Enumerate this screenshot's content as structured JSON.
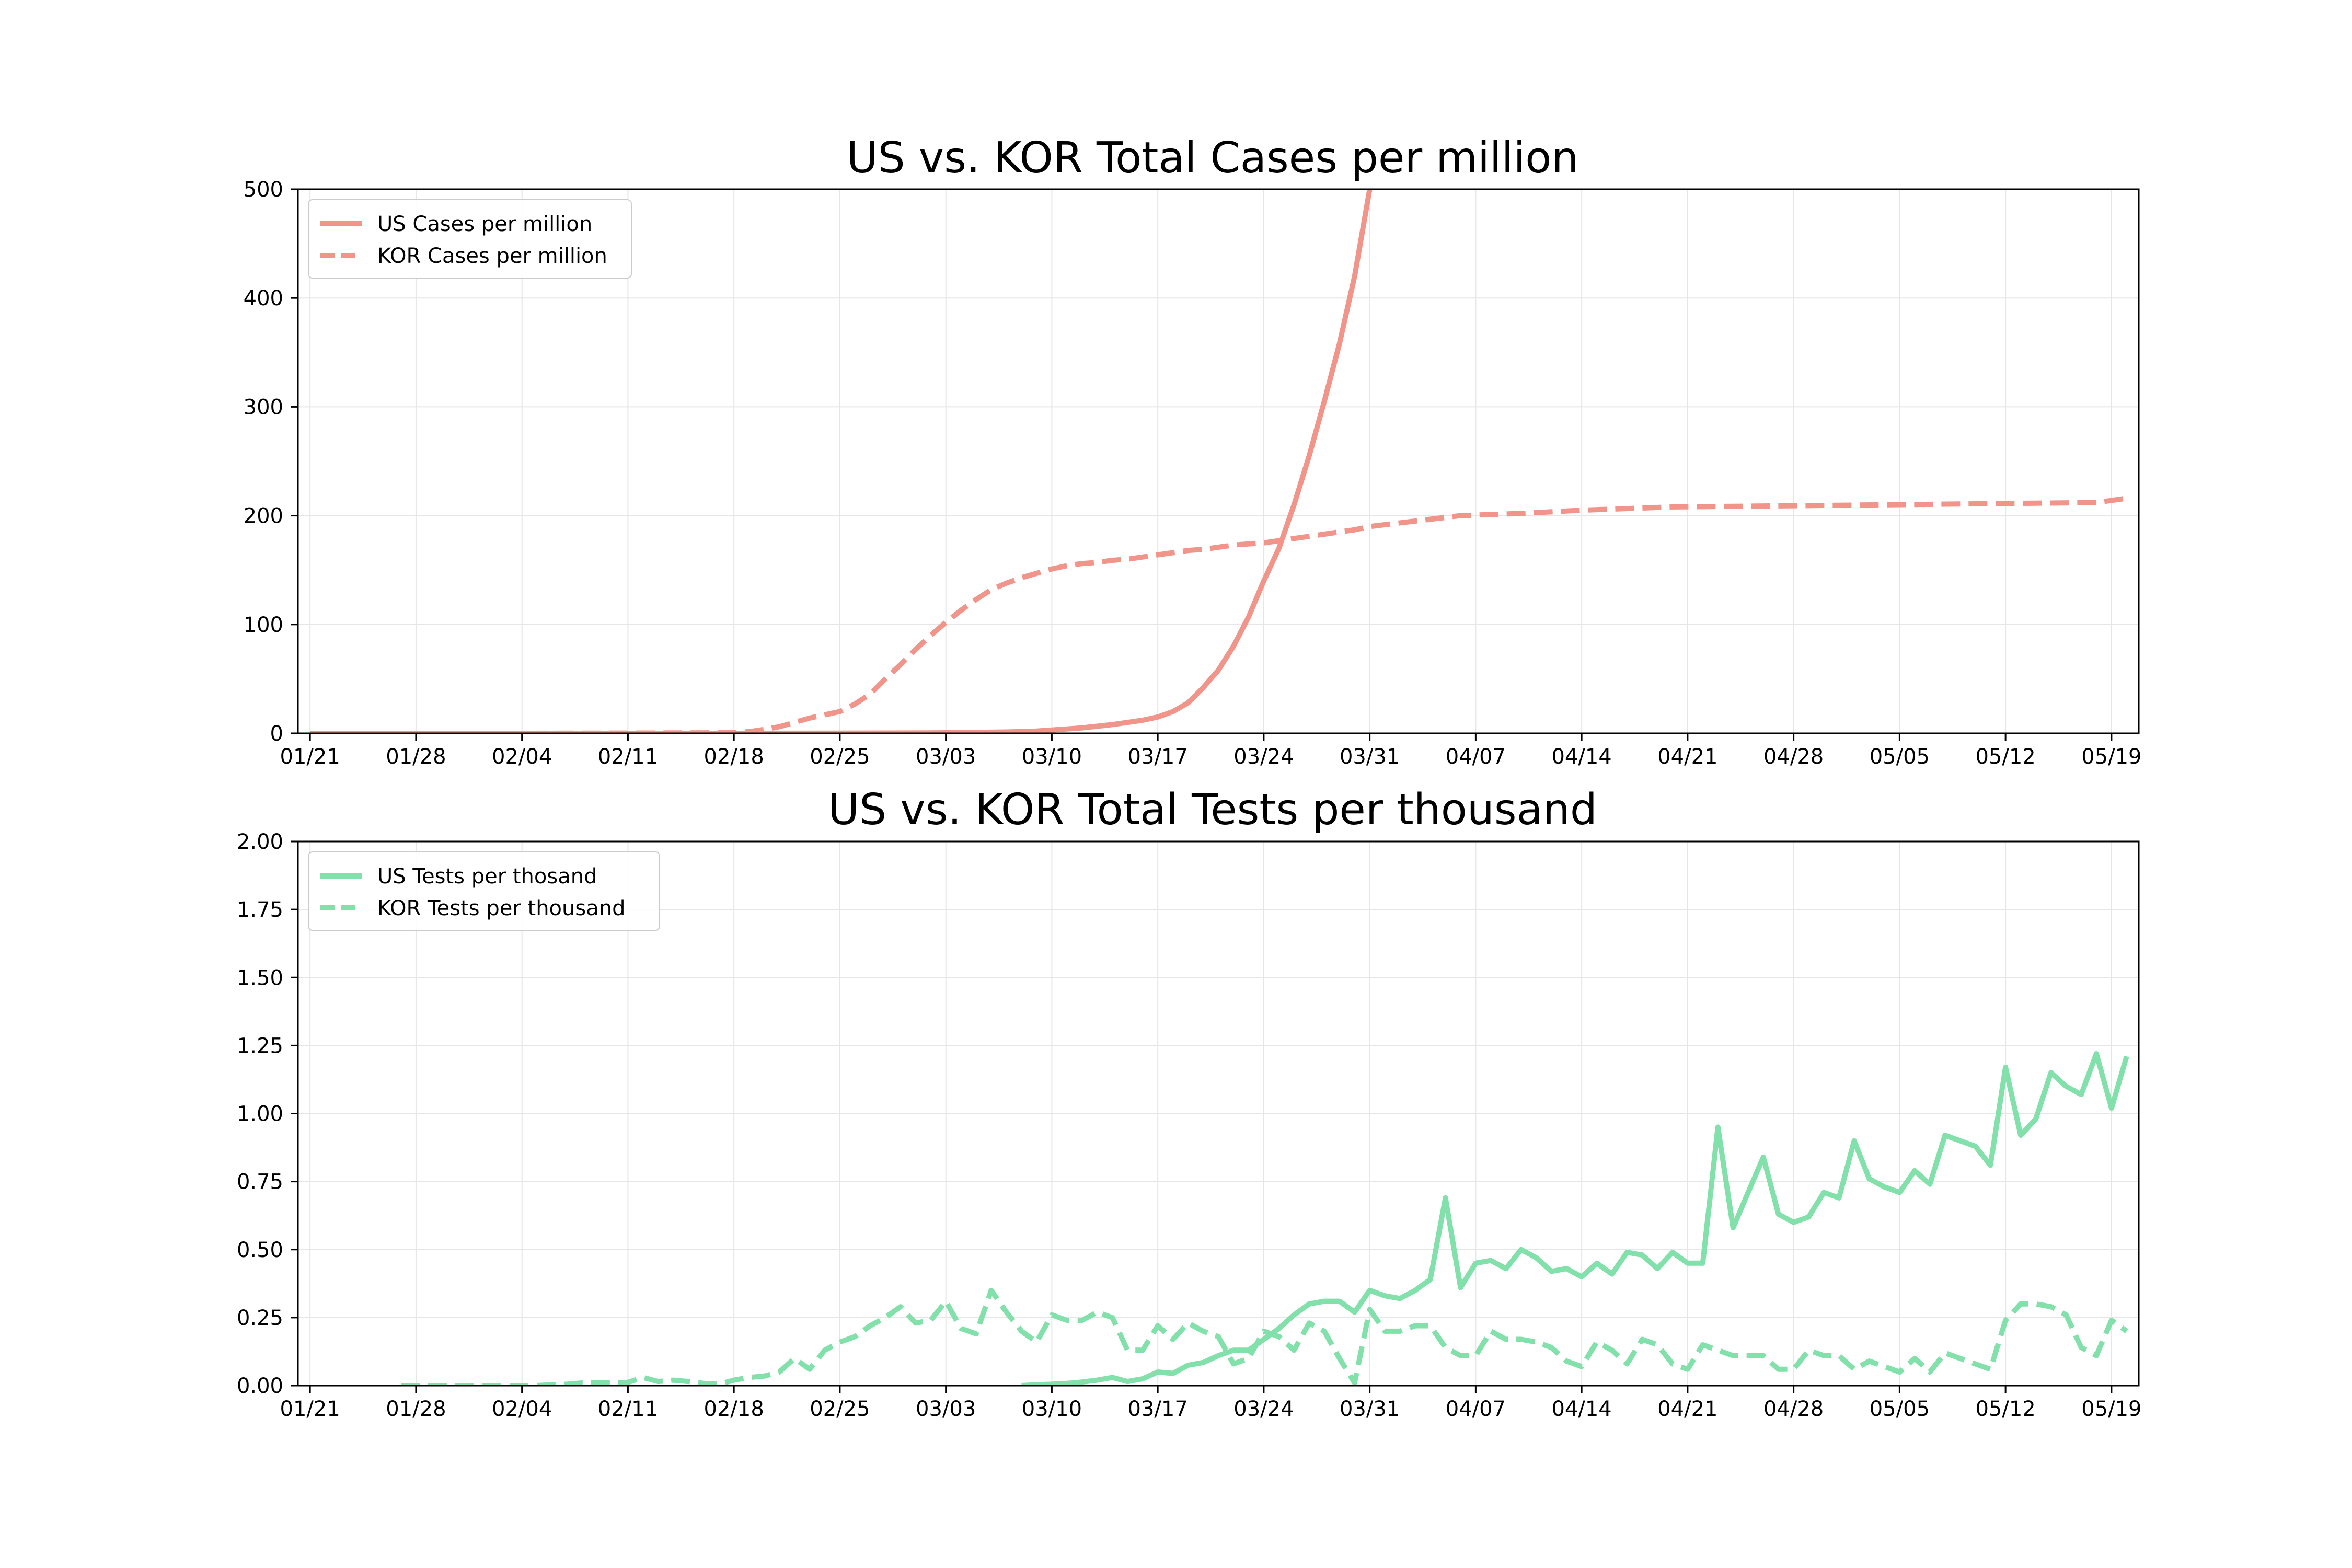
{
  "chart_data": [
    {
      "type": "line",
      "title": "US vs. KOR Total Cases per million",
      "xlabel": "",
      "ylabel": "",
      "x_start": "01/21",
      "xticks": [
        "01/21",
        "01/28",
        "02/04",
        "02/11",
        "02/18",
        "02/25",
        "03/03",
        "03/10",
        "03/17",
        "03/24",
        "03/31",
        "04/07",
        "04/14",
        "04/21",
        "04/28",
        "05/05",
        "05/12",
        "05/19"
      ],
      "xlim": [
        -0.8,
        120.8
      ],
      "ylim": [
        0,
        500
      ],
      "yticks": [
        "0",
        "100",
        "200",
        "300",
        "400",
        "500"
      ],
      "ytick_values": [
        0,
        100,
        200,
        300,
        400,
        500
      ],
      "grid": true,
      "legend": "upper left",
      "color": "#f1948a",
      "series": [
        {
          "name": "US Cases per million",
          "style": "solid",
          "x": [
            0,
            7,
            14,
            21,
            28,
            35,
            40,
            42,
            44,
            46,
            47,
            48,
            49,
            50,
            51,
            52,
            53,
            54,
            55,
            56,
            57,
            58,
            59,
            60,
            61,
            62,
            63,
            64,
            65,
            66,
            67,
            68,
            69,
            70
          ],
          "values": [
            0,
            0,
            0,
            0,
            0,
            0.1,
            0.3,
            0.5,
            0.8,
            1.2,
            1.6,
            2,
            3,
            4,
            5,
            6.5,
            8,
            10,
            12,
            15,
            20,
            28,
            42,
            58,
            80,
            107,
            140,
            170,
            210,
            255,
            305,
            358,
            420,
            500
          ]
        },
        {
          "name": "KOR Cases per million",
          "style": "dashed",
          "x": [
            0,
            7,
            14,
            21,
            28,
            29,
            30,
            31,
            32,
            33,
            34,
            35,
            36,
            37,
            38,
            39,
            40,
            41,
            42,
            43,
            44,
            45,
            46,
            47,
            48,
            49,
            50,
            51,
            52,
            53,
            54,
            55,
            56,
            57,
            58,
            59,
            60,
            61,
            62,
            63,
            64,
            65,
            66,
            67,
            68,
            69,
            70,
            73,
            76,
            80,
            84,
            90,
            97,
            104,
            111,
            118,
            120
          ],
          "values": [
            0,
            0,
            0,
            0.2,
            0.5,
            1.5,
            3.5,
            6,
            10,
            14,
            17,
            20,
            27,
            36,
            50,
            63,
            77,
            90,
            102,
            113,
            123,
            132,
            138,
            143,
            147,
            151,
            154,
            156,
            157,
            159,
            160,
            162,
            164,
            166,
            168,
            169,
            171,
            173,
            174,
            175,
            177,
            179,
            181,
            183,
            185,
            187,
            190,
            195,
            200,
            202,
            205,
            208,
            209,
            210,
            211,
            212,
            216
          ]
        }
      ]
    },
    {
      "type": "line",
      "title": "US vs. KOR Total Tests per thousand",
      "xlabel": "",
      "ylabel": "",
      "x_start": "01/21",
      "xticks": [
        "01/21",
        "01/28",
        "02/04",
        "02/11",
        "02/18",
        "02/25",
        "03/03",
        "03/10",
        "03/17",
        "03/24",
        "03/31",
        "04/07",
        "04/14",
        "04/21",
        "04/28",
        "05/05",
        "05/12",
        "05/19"
      ],
      "xlim": [
        -0.8,
        120.8
      ],
      "ylim": [
        0,
        2
      ],
      "yticks": [
        "0.00",
        "0.25",
        "0.50",
        "0.75",
        "1.00",
        "1.25",
        "1.50",
        "1.75",
        "2.00"
      ],
      "ytick_values": [
        0,
        0.25,
        0.5,
        0.75,
        1,
        1.25,
        1.5,
        1.75,
        2
      ],
      "grid": true,
      "legend": "upper left",
      "color": "#82e0aa",
      "series": [
        {
          "name": "US Tests per thosand",
          "style": "solid",
          "x": [
            47,
            48,
            49,
            50,
            51,
            52,
            53,
            54,
            55,
            56,
            57,
            58,
            59,
            60,
            61,
            62,
            63,
            64,
            65,
            66,
            67,
            68,
            69,
            70,
            71,
            72,
            73,
            74,
            75,
            76,
            77,
            78,
            79,
            80,
            81,
            82,
            83,
            84,
            85,
            86,
            87,
            88,
            89,
            90,
            91,
            92,
            93,
            94,
            95,
            96,
            97,
            98,
            99,
            100,
            101,
            102,
            103,
            104,
            105,
            106,
            107,
            108,
            109,
            110,
            111,
            112,
            113,
            114,
            115,
            116,
            117,
            118,
            119,
            120
          ],
          "values": [
            0,
            0.003,
            0.005,
            0.008,
            0.013,
            0.02,
            0.03,
            0.015,
            0.025,
            0.05,
            0.045,
            0.075,
            0.085,
            0.11,
            0.13,
            0.13,
            0.17,
            0.21,
            0.26,
            0.3,
            0.31,
            0.31,
            0.27,
            0.35,
            0.33,
            0.32,
            0.35,
            0.39,
            0.69,
            0.36,
            0.45,
            0.46,
            0.43,
            0.5,
            0.47,
            0.42,
            0.43,
            0.4,
            0.45,
            0.41,
            0.49,
            0.48,
            0.43,
            0.49,
            0.45,
            0.45,
            0.95,
            0.58,
            0.71,
            0.84,
            0.63,
            0.6,
            0.62,
            0.71,
            0.69,
            0.9,
            0.76,
            0.73,
            0.71,
            0.79,
            0.74,
            0.92,
            0.9,
            0.88,
            0.81,
            1.17,
            0.92,
            0.98,
            1.15,
            1.1,
            1.07,
            1.22,
            1.02,
            1.21
          ]
        },
        {
          "name": "KOR Tests per thousand",
          "style": "dashed",
          "x": [
            6,
            7,
            15,
            16,
            17,
            18,
            19,
            20,
            21,
            22,
            23,
            24,
            25,
            26,
            27,
            28,
            29,
            30,
            31,
            32,
            33,
            34,
            35,
            36,
            37,
            38,
            39,
            40,
            41,
            42,
            43,
            44,
            45,
            46,
            47,
            48,
            49,
            50,
            51,
            52,
            53,
            54,
            55,
            56,
            57,
            58,
            59,
            60,
            61,
            62,
            63,
            64,
            65,
            66,
            67,
            68,
            69,
            70,
            71,
            72,
            73,
            74,
            75,
            76,
            77,
            78,
            79,
            80,
            81,
            82,
            83,
            84,
            85,
            86,
            87,
            88,
            89,
            90,
            91,
            92,
            93,
            94,
            95,
            96,
            97,
            98,
            99,
            100,
            101,
            102,
            103,
            104,
            105,
            106,
            107,
            108,
            109,
            110,
            111,
            112,
            113,
            114,
            115,
            116,
            117,
            118,
            119,
            120
          ],
          "values": [
            0,
            0,
            0,
            0.003,
            0.005,
            0.01,
            0.01,
            0.01,
            0.012,
            0.03,
            0.015,
            0.02,
            0.015,
            0.008,
            0.005,
            0.02,
            0.03,
            0.035,
            0.05,
            0.1,
            0.06,
            0.13,
            0.16,
            0.18,
            0.22,
            0.25,
            0.29,
            0.23,
            0.24,
            0.31,
            0.21,
            0.19,
            0.35,
            0.27,
            0.2,
            0.16,
            0.26,
            0.24,
            0.24,
            0.27,
            0.25,
            0.13,
            0.13,
            0.22,
            0.17,
            0.23,
            0.2,
            0.18,
            0.08,
            0.1,
            0.2,
            0.18,
            0.13,
            0.23,
            0.2,
            0.1,
            0.01,
            0.28,
            0.2,
            0.2,
            0.22,
            0.22,
            0.14,
            0.11,
            0.11,
            0.2,
            0.17,
            0.17,
            0.16,
            0.14,
            0.09,
            0.07,
            0.16,
            0.13,
            0.08,
            0.17,
            0.15,
            0.08,
            0.06,
            0.15,
            0.13,
            0.11,
            0.11,
            0.11,
            0.06,
            0.06,
            0.13,
            0.11,
            0.11,
            0.06,
            0.09,
            0.07,
            0.05,
            0.1,
            0.05,
            0.12,
            0.1,
            0.08,
            0.06,
            0.24,
            0.3,
            0.3,
            0.29,
            0.26,
            0.14,
            0.11,
            0.24,
            0.2
          ]
        }
      ]
    }
  ]
}
